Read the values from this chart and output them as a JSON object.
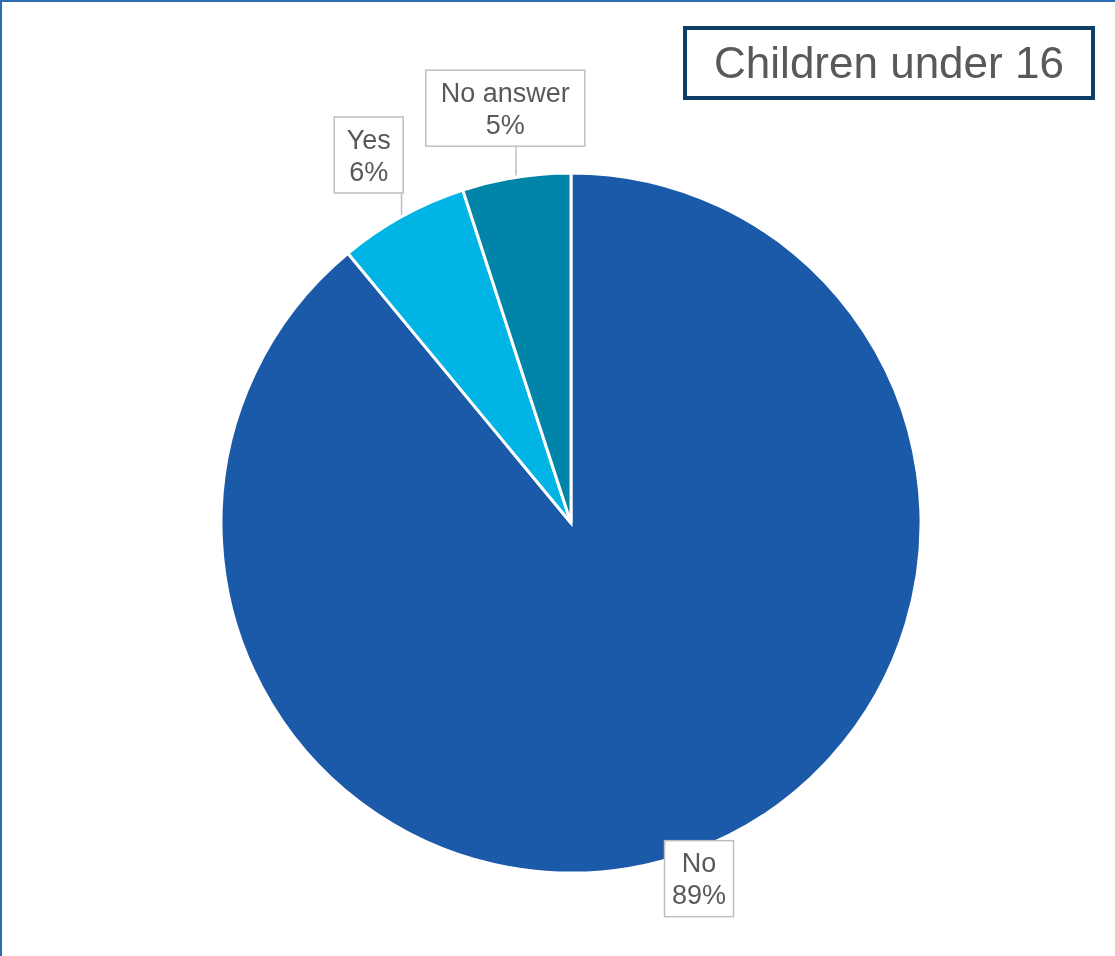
{
  "chart_data": {
    "type": "pie",
    "title": "Children under 16",
    "categories": [
      "No",
      "Yes",
      "No answer"
    ],
    "values": [
      89,
      6,
      5
    ],
    "colors": [
      "#1a5aa8",
      "#00b5e6",
      "#0085a8"
    ],
    "value_labels": [
      "89%",
      "6%",
      "5%"
    ]
  }
}
